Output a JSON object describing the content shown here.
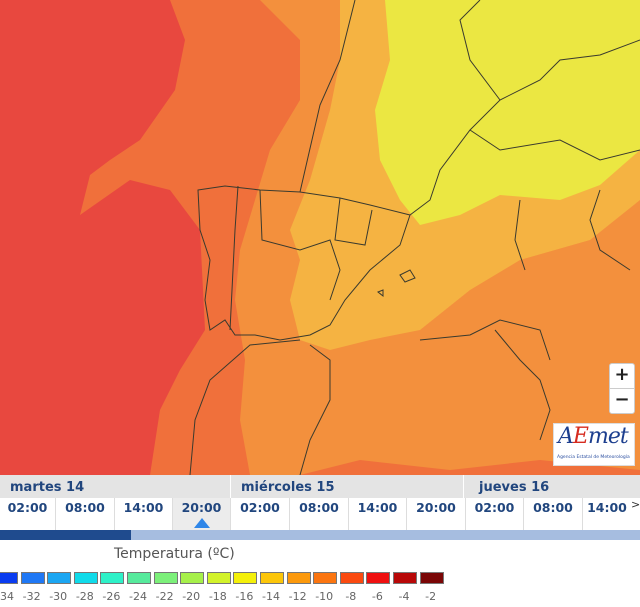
{
  "map": {
    "colors": {
      "sea_red": "#e8483f",
      "outer": "#f0703b",
      "mid": "#f3903d",
      "light": "#f5b342",
      "yellow": "#ebe742",
      "border": "#3a3a2e"
    },
    "zoom_in_label": "+",
    "zoom_out_label": "−",
    "logo": {
      "text": "AEmet",
      "subtitle": "Agencia Estatal de Meteorología"
    }
  },
  "timeline": {
    "days": [
      "martes 14",
      "miércoles 15",
      "jueves 16"
    ],
    "hours": [
      "02:00",
      "08:00",
      "14:00",
      "20:00",
      "02:00",
      "08:00",
      "14:00",
      "20:00",
      "02:00",
      "08:00",
      "14:00"
    ],
    "selected_index": 3,
    "next_label": ">",
    "progress_percent": 20.5
  },
  "legend": {
    "title": "Temperatura (ºC)",
    "colors": [
      "#0a3cf0",
      "#1f78f5",
      "#1ba6f2",
      "#10dbea",
      "#2ef1c8",
      "#56ea9c",
      "#7cf07a",
      "#a6f04a",
      "#d2f22a",
      "#f4f00a",
      "#fcc60a",
      "#fc990c",
      "#fb7510",
      "#fa4a10",
      "#ef1010",
      "#b80808",
      "#7a0606"
    ],
    "labels": [
      "-34",
      "-32",
      "-30",
      "-28",
      "-26",
      "-24",
      "-22",
      "-20",
      "-18",
      "-16",
      "-14",
      "-12",
      "-10",
      "-8",
      "-6",
      "-4",
      "-2"
    ]
  }
}
